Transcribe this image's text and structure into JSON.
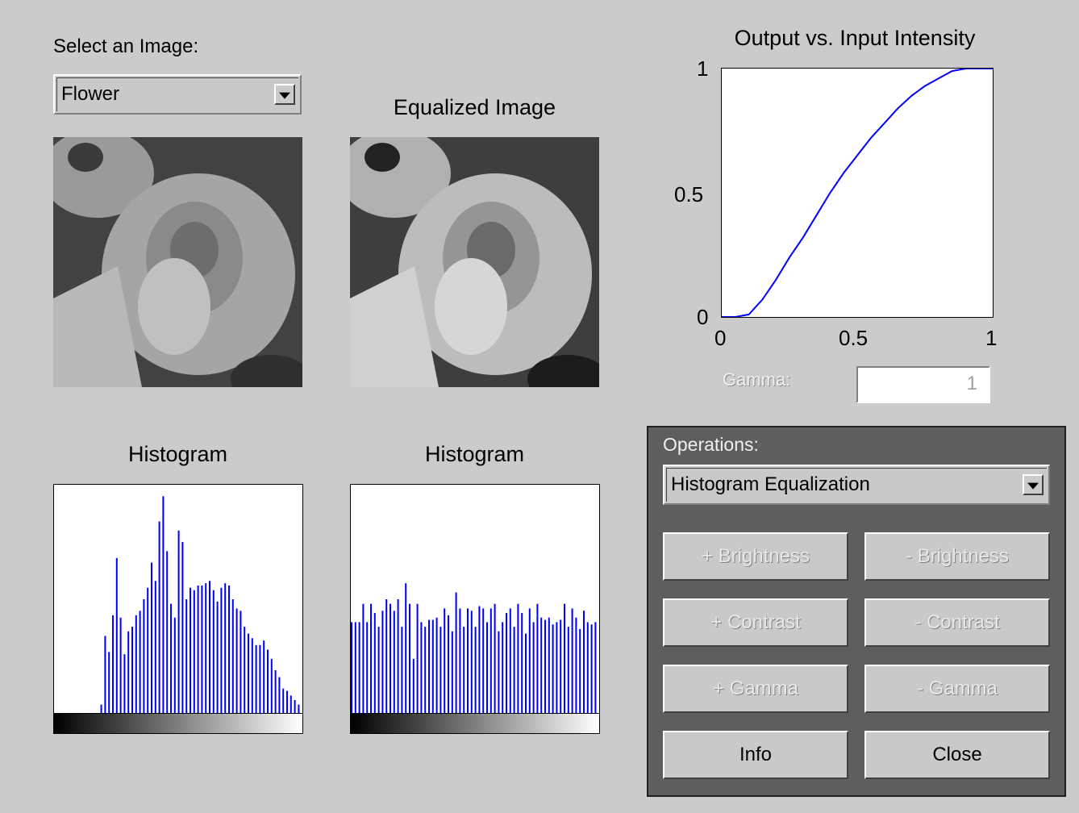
{
  "select_image": {
    "label": "Select an Image:",
    "selected": "Flower"
  },
  "original_image": {
    "description_icon": "flower-grayscale-image"
  },
  "equalized": {
    "title": "Equalized Image"
  },
  "histograms": {
    "left_title": "Histogram",
    "right_title": "Histogram",
    "accent_color": "#0000ff"
  },
  "curve_plot": {
    "title": "Output vs. Input Intensity",
    "x_ticks": [
      "0",
      "0.5",
      "1"
    ],
    "y_ticks": [
      "0",
      "0.5",
      "1"
    ]
  },
  "gamma": {
    "label": "Gamma:",
    "value": "1"
  },
  "operations": {
    "label": "Operations:",
    "selected": "Histogram Equalization",
    "buttons": {
      "plus_brightness": "+ Brightness",
      "minus_brightness": "- Brightness",
      "plus_contrast": "+ Contrast",
      "minus_contrast": "- Contrast",
      "plus_gamma": "+ Gamma",
      "minus_gamma": "- Gamma",
      "info": "Info",
      "close": "Close"
    }
  },
  "chart_data": [
    {
      "type": "bar",
      "title": "Histogram",
      "xlim": [
        0,
        255
      ],
      "ylim": [
        0,
        1
      ],
      "x": [
        0,
        4,
        8,
        12,
        16,
        20,
        24,
        28,
        32,
        36,
        40,
        44,
        48,
        52,
        56,
        60,
        64,
        68,
        72,
        76,
        80,
        84,
        88,
        92,
        96,
        100,
        104,
        108,
        112,
        116,
        120,
        124,
        128,
        132,
        136,
        140,
        144,
        148,
        152,
        156,
        160,
        164,
        168,
        172,
        176,
        180,
        184,
        188,
        192,
        196,
        200,
        204,
        208,
        212,
        216,
        220,
        224,
        228,
        232,
        236,
        240,
        244,
        248,
        252
      ],
      "values": [
        0,
        0,
        0,
        0,
        0,
        0,
        0,
        0,
        0,
        0,
        0,
        0,
        0.04,
        0.34,
        0.27,
        0.43,
        0.68,
        0.42,
        0.26,
        0.36,
        0.38,
        0.43,
        0.45,
        0.5,
        0.55,
        0.66,
        0.58,
        0.84,
        0.95,
        0.71,
        0.48,
        0.42,
        0.8,
        0.75,
        0.5,
        0.55,
        0.54,
        0.56,
        0.56,
        0.57,
        0.58,
        0.54,
        0.49,
        0.55,
        0.57,
        0.56,
        0.5,
        0.46,
        0.45,
        0.38,
        0.35,
        0.33,
        0.3,
        0.3,
        0.32,
        0.28,
        0.24,
        0.19,
        0.16,
        0.11,
        0.1,
        0.08,
        0.06,
        0.04
      ]
    },
    {
      "type": "bar",
      "title": "Histogram",
      "xlim": [
        0,
        255
      ],
      "ylim": [
        0,
        1
      ],
      "x": [
        0,
        4,
        8,
        12,
        16,
        20,
        24,
        28,
        32,
        36,
        40,
        44,
        48,
        52,
        56,
        60,
        64,
        68,
        72,
        76,
        80,
        84,
        88,
        92,
        96,
        100,
        104,
        108,
        112,
        116,
        120,
        124,
        128,
        132,
        136,
        140,
        144,
        148,
        152,
        156,
        160,
        164,
        168,
        172,
        176,
        180,
        184,
        188,
        192,
        196,
        200,
        204,
        208,
        212,
        216,
        220,
        224,
        228,
        232,
        236,
        240,
        244,
        248,
        252
      ],
      "values": [
        0.4,
        0.4,
        0.4,
        0.48,
        0.4,
        0.48,
        0.44,
        0.38,
        0.45,
        0.5,
        0.48,
        0.45,
        0.5,
        0.38,
        0.57,
        0.48,
        0.24,
        0.48,
        0.4,
        0.38,
        0.41,
        0.41,
        0.42,
        0.38,
        0.46,
        0.43,
        0.36,
        0.53,
        0.46,
        0.38,
        0.46,
        0.45,
        0.38,
        0.47,
        0.46,
        0.4,
        0.46,
        0.48,
        0.36,
        0.4,
        0.44,
        0.46,
        0.38,
        0.48,
        0.44,
        0.35,
        0.46,
        0.4,
        0.48,
        0.42,
        0.41,
        0.42,
        0.39,
        0.4,
        0.41,
        0.48,
        0.38,
        0.46,
        0.42,
        0.37,
        0.45,
        0.4,
        0.39,
        0.4
      ]
    },
    {
      "type": "line",
      "title": "Output vs. Input Intensity",
      "xlim": [
        0,
        1
      ],
      "ylim": [
        0,
        1
      ],
      "x": [
        0,
        0.05,
        0.1,
        0.15,
        0.2,
        0.25,
        0.3,
        0.35,
        0.4,
        0.45,
        0.5,
        0.55,
        0.6,
        0.65,
        0.7,
        0.75,
        0.8,
        0.85,
        0.9,
        0.95,
        1.0
      ],
      "y": [
        0,
        0,
        0.01,
        0.07,
        0.15,
        0.24,
        0.32,
        0.41,
        0.5,
        0.58,
        0.65,
        0.72,
        0.78,
        0.84,
        0.89,
        0.93,
        0.96,
        0.99,
        1.0,
        1.0,
        1.0
      ],
      "color": "#0000ff"
    }
  ]
}
